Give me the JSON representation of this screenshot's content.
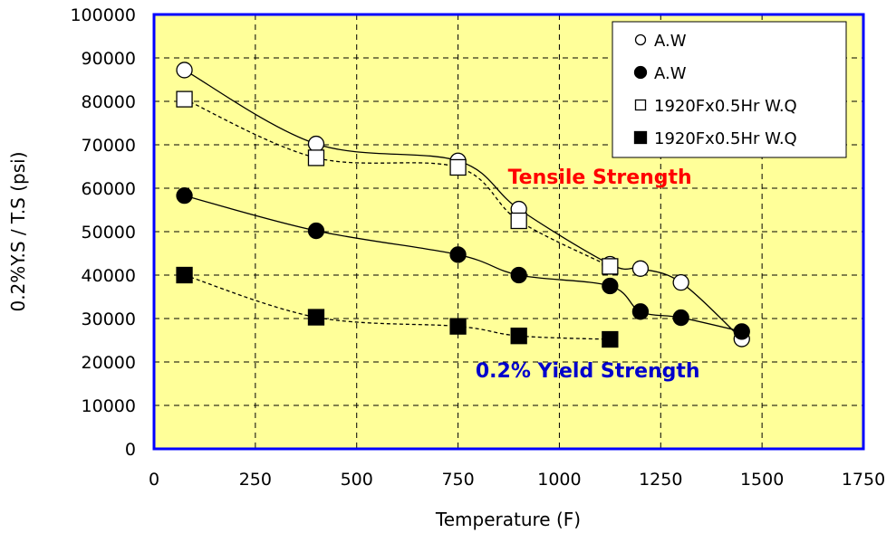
{
  "chart_data": {
    "type": "scatter",
    "title": "",
    "xlabel": "Temperature (F)",
    "ylabel": "0.2%Y.S / T.S (psi)",
    "xlim": [
      0,
      1750
    ],
    "ylim": [
      0,
      100000
    ],
    "x_ticks": [
      0,
      250,
      500,
      750,
      1000,
      1250,
      1500,
      1750
    ],
    "y_ticks": [
      0,
      10000,
      20000,
      30000,
      40000,
      50000,
      60000,
      70000,
      80000,
      90000,
      100000
    ],
    "grid": true,
    "legend_position": "top-right",
    "colors": {
      "plot_background": "#ffff99",
      "plot_border": "#0000ff",
      "tensile_annotation": "#ff0000",
      "yield_annotation": "#0000cc"
    },
    "series": [
      {
        "name": "A.W",
        "marker": "open-circle",
        "line": "solid",
        "points": [
          [
            75,
            87200
          ],
          [
            400,
            70200
          ],
          [
            750,
            66300
          ],
          [
            900,
            55200
          ],
          [
            1125,
            42500
          ],
          [
            1200,
            41500
          ],
          [
            1300,
            38300
          ],
          [
            1450,
            25300
          ]
        ]
      },
      {
        "name": "A.W",
        "marker": "filled-circle",
        "line": "solid",
        "points": [
          [
            75,
            58300
          ],
          [
            400,
            50200
          ],
          [
            750,
            44700
          ],
          [
            900,
            40000
          ],
          [
            1125,
            37500
          ],
          [
            1200,
            31600
          ],
          [
            1300,
            30200
          ],
          [
            1450,
            27000
          ]
        ]
      },
      {
        "name": "1920Fx0.5Hr W.Q",
        "marker": "open-square",
        "line": "dashed",
        "points": [
          [
            75,
            80500
          ],
          [
            400,
            67000
          ],
          [
            750,
            64800
          ],
          [
            900,
            52500
          ],
          [
            1125,
            42000
          ]
        ]
      },
      {
        "name": "1920Fx0.5Hr W.Q",
        "marker": "filled-square",
        "line": "dashed",
        "points": [
          [
            75,
            40000
          ],
          [
            400,
            30300
          ],
          [
            750,
            28200
          ],
          [
            900,
            26000
          ],
          [
            1125,
            25200
          ]
        ]
      }
    ],
    "annotations": [
      {
        "text": "Tensile Strength",
        "x": 1100,
        "y": 61000,
        "color": "#ff0000"
      },
      {
        "text": "0.2% Yield Strength",
        "x": 1070,
        "y": 16500,
        "color": "#0000cc"
      }
    ]
  }
}
